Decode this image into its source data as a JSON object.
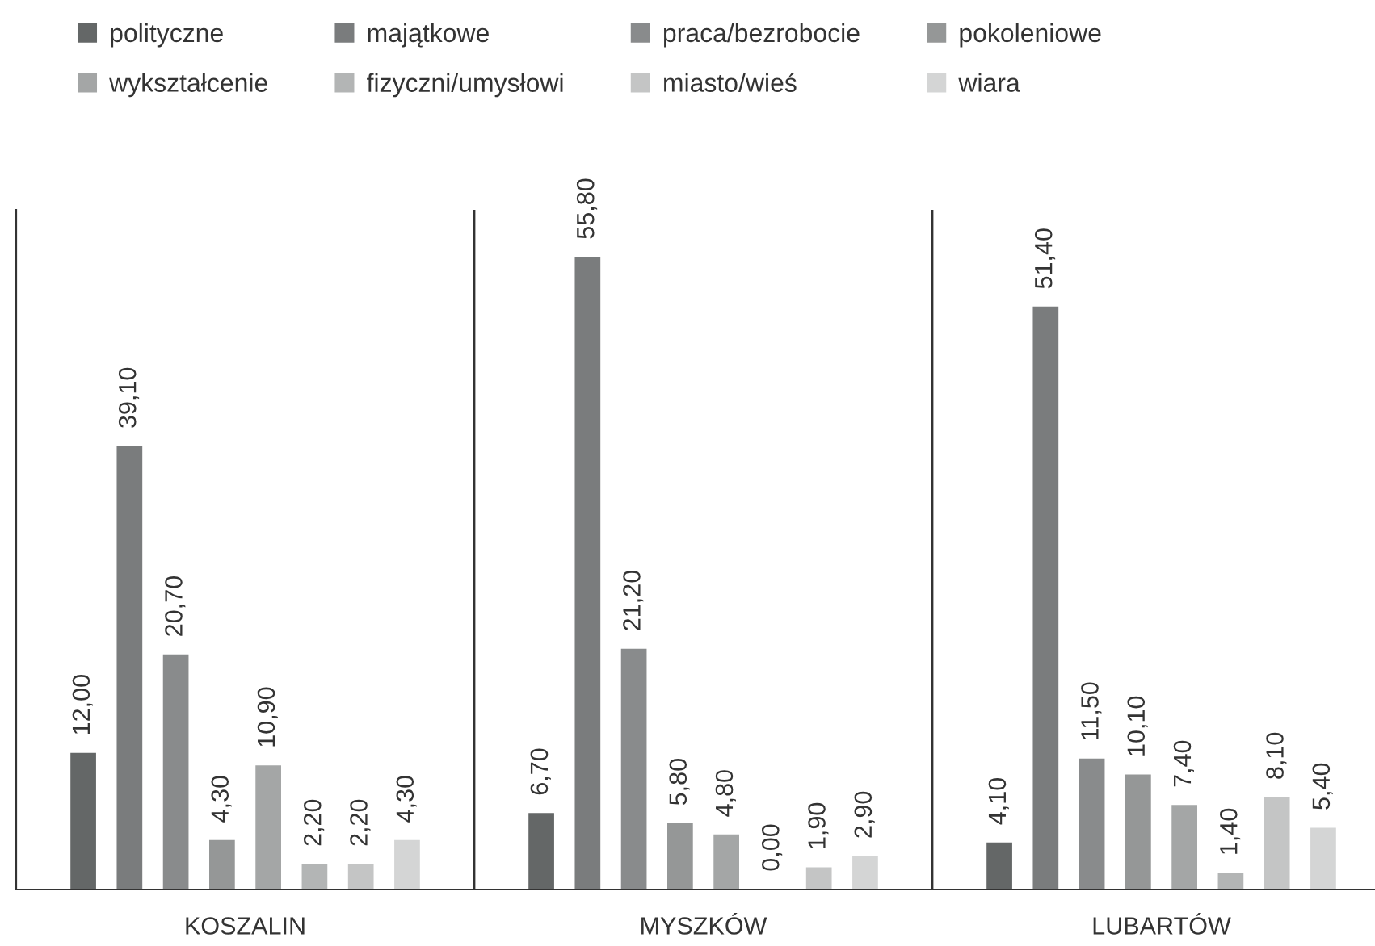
{
  "chart_data": {
    "type": "bar",
    "ylim": [
      0,
      60
    ],
    "categories": [
      "KOSZALIN",
      "MYSZKÓW",
      "LUBARTÓW"
    ],
    "series": [
      {
        "name": "polityczne",
        "color": "#646767",
        "values": [
          12.0,
          6.7,
          4.1
        ],
        "value_labels": [
          "12,00",
          "6,70",
          "4,10"
        ]
      },
      {
        "name": "majątkowe",
        "color": "#7a7c7d",
        "values": [
          39.1,
          55.8,
          51.4
        ],
        "value_labels": [
          "39,10",
          "55,80",
          "51,40"
        ]
      },
      {
        "name": "praca/bezrobocie",
        "color": "#898b8c",
        "values": [
          20.7,
          21.2,
          11.5
        ],
        "value_labels": [
          "20,70",
          "21,20",
          "11,50"
        ]
      },
      {
        "name": "pokoleniowe",
        "color": "#959797",
        "values": [
          4.3,
          5.8,
          10.1
        ],
        "value_labels": [
          "4,30",
          "5,80",
          "10,10"
        ]
      },
      {
        "name": "wykształcenie",
        "color": "#a4a6a6",
        "values": [
          10.9,
          4.8,
          7.4
        ],
        "value_labels": [
          "10,90",
          "4,80",
          "7,40"
        ]
      },
      {
        "name": "fizyczni/umysłowi",
        "color": "#b3b5b5",
        "values": [
          2.2,
          0.0,
          1.4
        ],
        "value_labels": [
          "2,20",
          "0,00",
          "1,40"
        ]
      },
      {
        "name": "miasto/wieś",
        "color": "#c4c5c5",
        "values": [
          2.2,
          1.9,
          8.1
        ],
        "value_labels": [
          "2,20",
          "1,90",
          "8,10"
        ]
      },
      {
        "name": "wiara",
        "color": "#d4d5d5",
        "values": [
          4.3,
          2.9,
          5.4
        ],
        "value_labels": [
          "4,30",
          "2,90",
          "5,40"
        ]
      }
    ],
    "grid": "x",
    "legend": "top"
  }
}
